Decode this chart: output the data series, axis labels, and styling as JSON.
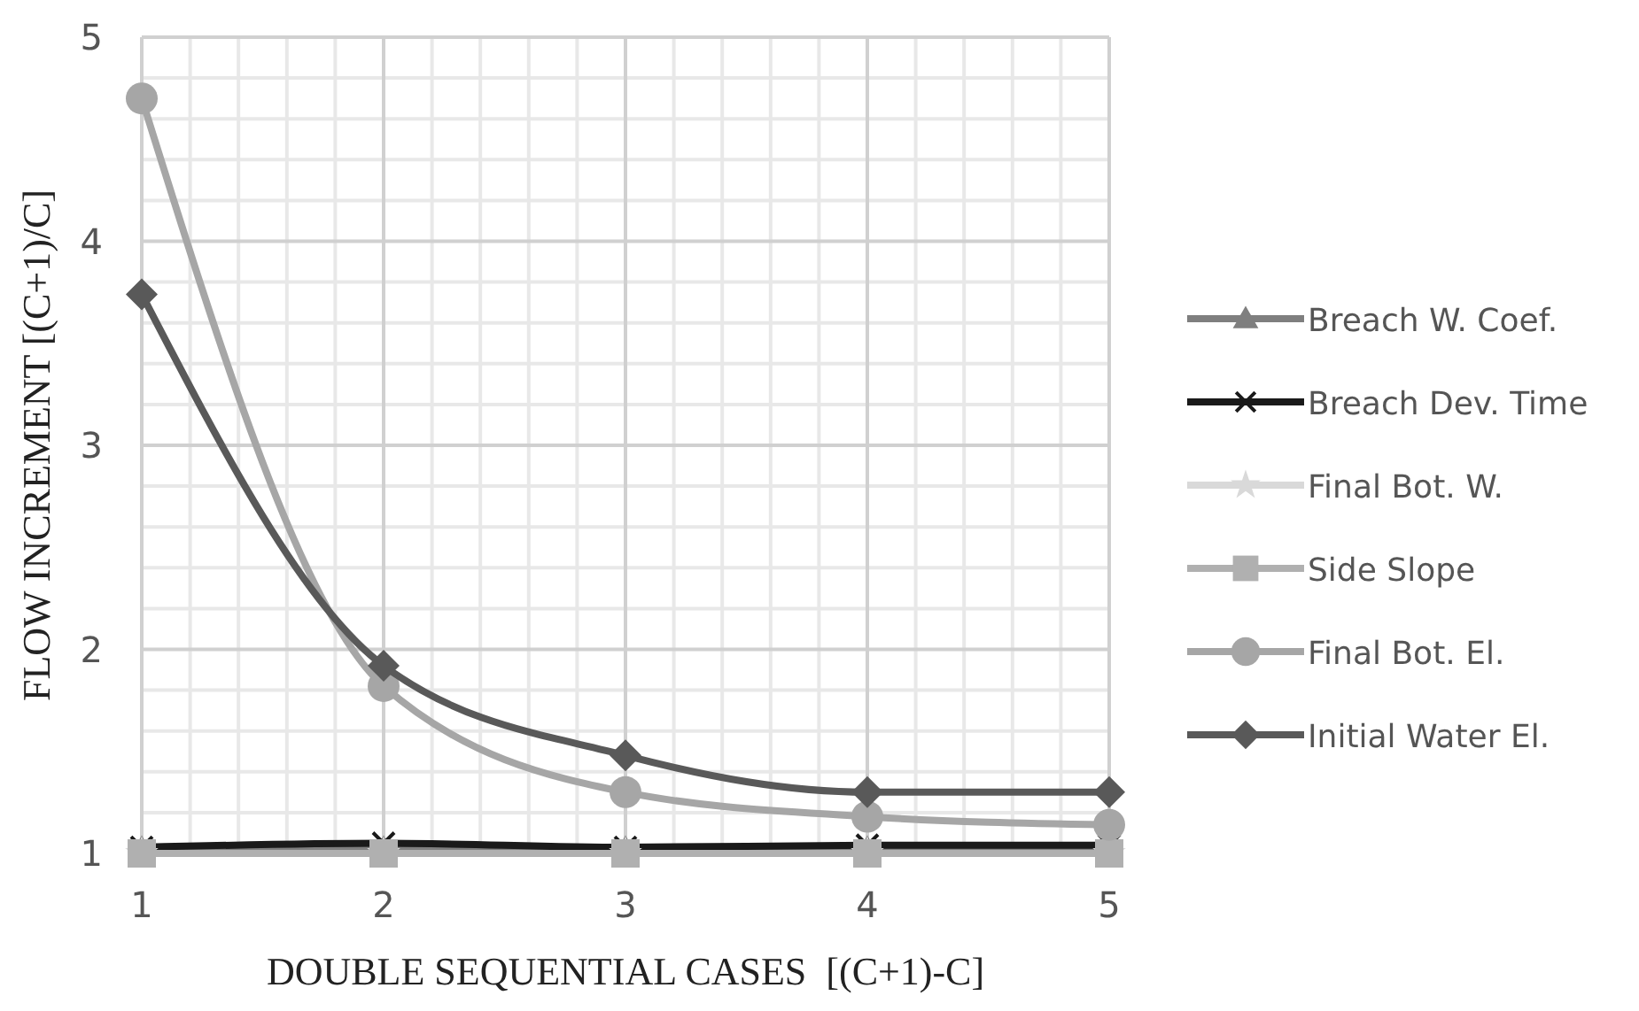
{
  "chart_data": {
    "type": "line",
    "xlabel": "DOUBLE SEQUENTIAL CASES  [(C+1)-C]",
    "ylabel": "FLOW INCREMENT [(C+1)/C]",
    "x": [
      1,
      2,
      3,
      4,
      5
    ],
    "xlim": [
      1,
      5
    ],
    "xticks": [
      1,
      2,
      3,
      4,
      5
    ],
    "ylim": [
      1,
      5
    ],
    "yticks": [
      1,
      2,
      3,
      4,
      5
    ],
    "grid": true,
    "legend": "right",
    "series": [
      {
        "name": "Breach W. Coef.",
        "color": "#7f7f7f",
        "marker": "triangle",
        "values": [
          1.02,
          1.02,
          1.02,
          1.02,
          1.02
        ]
      },
      {
        "name": "Breach Dev. Time",
        "color": "#1a1a1a",
        "marker": "cross",
        "values": [
          1.03,
          1.05,
          1.03,
          1.04,
          1.04
        ]
      },
      {
        "name": "Final Bot. W.",
        "color": "#d9d9d9",
        "marker": "star",
        "values": [
          1.0,
          1.0,
          1.0,
          1.0,
          1.0
        ]
      },
      {
        "name": "Side Slope",
        "color": "#b0b0b0",
        "marker": "square",
        "values": [
          1.0,
          1.0,
          1.0,
          1.0,
          1.0
        ]
      },
      {
        "name": "Final Bot. El.",
        "color": "#a6a6a6",
        "marker": "circle",
        "values": [
          4.7,
          1.82,
          1.3,
          1.18,
          1.14
        ]
      },
      {
        "name": "Initial Water El.",
        "color": "#595959",
        "marker": "diamond",
        "values": [
          3.74,
          1.92,
          1.48,
          1.3,
          1.3
        ]
      }
    ]
  }
}
